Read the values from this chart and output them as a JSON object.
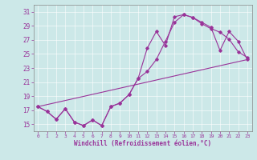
{
  "xlabel": "Windchill (Refroidissement éolien,°C)",
  "background_color": "#cce8e8",
  "line_color": "#993399",
  "xlim": [
    -0.5,
    23.5
  ],
  "ylim": [
    14.0,
    32.0
  ],
  "yticks": [
    15,
    17,
    19,
    21,
    23,
    25,
    27,
    29,
    31
  ],
  "xticks": [
    0,
    1,
    2,
    3,
    4,
    5,
    6,
    7,
    8,
    9,
    10,
    11,
    12,
    13,
    14,
    15,
    16,
    17,
    18,
    19,
    20,
    21,
    22,
    23
  ],
  "series1_x": [
    0,
    1,
    2,
    3,
    4,
    5,
    6,
    7,
    8,
    9,
    10,
    11,
    12,
    13,
    14,
    15,
    16,
    17,
    18,
    19,
    20,
    21,
    22,
    23
  ],
  "series1_y": [
    17.5,
    16.8,
    15.7,
    17.2,
    15.3,
    14.8,
    15.6,
    14.8,
    17.5,
    18.0,
    19.2,
    21.5,
    25.8,
    28.2,
    26.2,
    30.3,
    30.6,
    30.2,
    29.3,
    28.6,
    28.1,
    27.1,
    25.3,
    24.5
  ],
  "series2_x": [
    0,
    1,
    2,
    3,
    4,
    5,
    6,
    7,
    8,
    9,
    10,
    11,
    12,
    13,
    14,
    15,
    16,
    17,
    18,
    19,
    20,
    21,
    22,
    23
  ],
  "series2_y": [
    17.5,
    16.8,
    15.7,
    17.2,
    15.3,
    14.8,
    15.6,
    14.8,
    17.5,
    18.0,
    19.2,
    21.5,
    22.5,
    24.2,
    26.8,
    29.5,
    30.6,
    30.2,
    29.5,
    28.8,
    25.5,
    28.2,
    26.8,
    24.2
  ],
  "series3_x": [
    0,
    23
  ],
  "series3_y": [
    17.5,
    24.2
  ]
}
